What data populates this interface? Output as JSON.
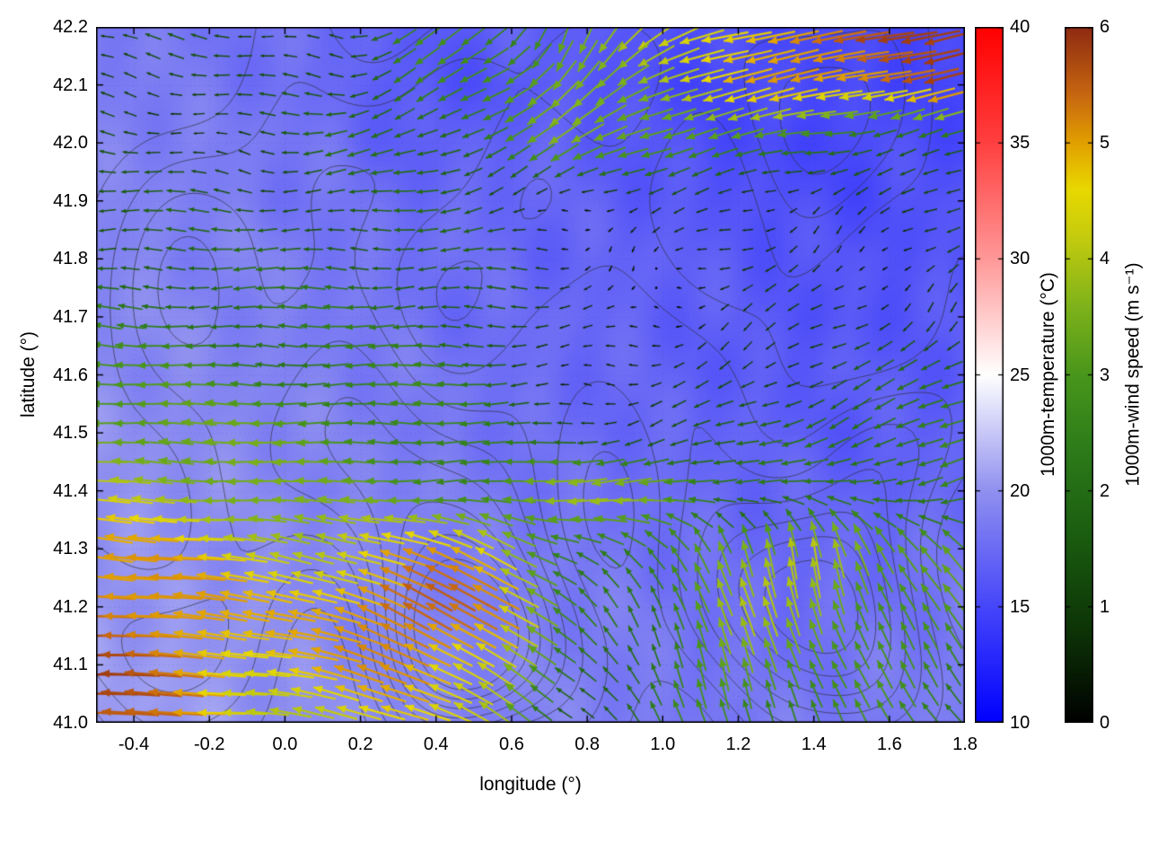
{
  "chart_data": {
    "type": "heatmap",
    "subtype": "temperature-heatmap with terrain contours and wind vector field",
    "title": "",
    "xlabel": "longitude (°)",
    "ylabel": "latitude (°)",
    "xlim": [
      -0.5,
      1.8
    ],
    "ylim": [
      41.0,
      42.2
    ],
    "xticks": [
      -0.4,
      -0.2,
      0.0,
      0.2,
      0.4,
      0.6,
      0.8,
      1.0,
      1.2,
      1.4,
      1.6,
      1.8
    ],
    "yticks": [
      41.0,
      41.1,
      41.2,
      41.3,
      41.4,
      41.5,
      41.6,
      41.7,
      41.8,
      41.9,
      42.0,
      42.1,
      42.2
    ],
    "grid_dotted": true,
    "temperature": {
      "label": "1000m-temperature (°C)",
      "range": [
        10,
        40
      ],
      "ticks": [
        10,
        15,
        20,
        25,
        30,
        35,
        40
      ],
      "colormap": [
        [
          10,
          "#0000ff"
        ],
        [
          15,
          "#4646fa"
        ],
        [
          20,
          "#9090f0"
        ],
        [
          25,
          "#ffffff"
        ],
        [
          30,
          "#ff9898"
        ],
        [
          35,
          "#ff4040"
        ],
        [
          40,
          "#ff0000"
        ]
      ],
      "grid": {
        "nx": 12,
        "ny": 13,
        "values": [
          [
            18.5,
            18.5,
            18.0,
            17.5,
            16.5,
            16.5,
            17.0,
            16.0,
            15.5,
            15.5,
            15.0,
            15.0
          ],
          [
            19.0,
            18.5,
            18.0,
            17.5,
            16.0,
            16.0,
            16.5,
            15.5,
            15.0,
            15.5,
            15.0,
            15.0
          ],
          [
            19.0,
            19.0,
            18.5,
            18.0,
            16.5,
            17.0,
            17.0,
            16.0,
            15.5,
            15.0,
            15.5,
            15.5
          ],
          [
            19.0,
            19.0,
            18.5,
            18.0,
            17.5,
            17.5,
            17.0,
            16.5,
            16.0,
            15.5,
            15.5,
            16.0
          ],
          [
            19.5,
            19.0,
            19.0,
            18.5,
            18.0,
            17.5,
            17.0,
            17.0,
            16.5,
            16.0,
            16.0,
            16.0
          ],
          [
            19.5,
            19.5,
            19.0,
            18.5,
            18.0,
            17.5,
            17.5,
            17.0,
            16.5,
            16.0,
            16.0,
            16.5
          ],
          [
            19.5,
            19.5,
            19.0,
            19.0,
            18.5,
            18.0,
            17.5,
            17.0,
            16.5,
            16.5,
            16.5,
            16.5
          ],
          [
            20.0,
            19.5,
            19.5,
            19.0,
            18.5,
            18.0,
            17.5,
            17.5,
            17.0,
            16.5,
            16.5,
            17.0
          ],
          [
            20.0,
            20.0,
            19.5,
            19.0,
            19.0,
            18.5,
            18.0,
            17.5,
            17.5,
            17.0,
            17.0,
            17.5
          ],
          [
            20.0,
            20.0,
            19.5,
            19.5,
            19.0,
            18.5,
            18.5,
            18.0,
            17.5,
            17.5,
            17.5,
            18.0
          ],
          [
            20.5,
            20.0,
            20.0,
            19.5,
            19.0,
            19.0,
            18.5,
            18.5,
            18.0,
            17.5,
            18.0,
            18.5
          ],
          [
            20.5,
            20.5,
            20.0,
            19.5,
            19.5,
            19.0,
            19.0,
            18.5,
            18.0,
            18.0,
            18.5,
            18.5
          ],
          [
            20.5,
            20.5,
            20.0,
            20.0,
            19.5,
            19.0,
            19.0,
            18.5,
            18.5,
            18.5,
            18.5,
            19.0
          ]
        ]
      }
    },
    "wind": {
      "label": "1000m-wind speed (m s⁻¹)",
      "range": [
        0,
        6
      ],
      "ticks": [
        0,
        1,
        2,
        3,
        4,
        5,
        6
      ],
      "colormap": [
        [
          0,
          "#000000"
        ],
        [
          0.8,
          "#0d3407"
        ],
        [
          1.6,
          "#1a5c10"
        ],
        [
          2.4,
          "#2e7d1a"
        ],
        [
          3.0,
          "#49961c"
        ],
        [
          3.6,
          "#7fb31a"
        ],
        [
          4.2,
          "#c6cc0e"
        ],
        [
          4.6,
          "#e8d800"
        ],
        [
          5.0,
          "#e2a000"
        ],
        [
          5.4,
          "#c86810"
        ],
        [
          6,
          "#8f2a12"
        ]
      ],
      "arrow_cols": 38,
      "arrow_rows": 36,
      "grid": {
        "nx": 12,
        "ny": 13,
        "u": [
          [
            -1.2,
            -1.2,
            -1.0,
            -1.3,
            -2.0,
            -2.0,
            -1.0,
            -3.0,
            -4.5,
            -5.3,
            -5.6,
            -5.4
          ],
          [
            -1.3,
            -1.2,
            -1.1,
            -1.4,
            -2.2,
            -2.3,
            -2.5,
            -3.5,
            -4.2,
            -5.0,
            -5.2,
            -5.4
          ],
          [
            -1.0,
            -1.0,
            -1.1,
            -1.8,
            -1.9,
            -2.2,
            -2.8,
            -3.2,
            -3.0,
            -2.2,
            -1.5,
            -2.0
          ],
          [
            -1.5,
            -1.5,
            -1.4,
            -1.5,
            -1.8,
            -1.2,
            -0.6,
            -0.5,
            -0.8,
            -0.8,
            -0.6,
            -1.0
          ],
          [
            -1.8,
            -1.8,
            -1.8,
            -1.8,
            -1.8,
            -1.5,
            -0.4,
            -0.3,
            -0.6,
            -0.5,
            -0.5,
            -0.8
          ],
          [
            -2.2,
            -2.2,
            -2.2,
            -2.2,
            -2.0,
            -1.8,
            -0.5,
            -0.3,
            -0.8,
            -0.7,
            -0.6,
            -0.7
          ],
          [
            -3.0,
            -2.8,
            -2.5,
            -2.5,
            -2.5,
            -2.0,
            -0.6,
            -0.4,
            -1.0,
            -1.2,
            -1.5,
            -1.8
          ],
          [
            -3.5,
            -3.4,
            -3.2,
            -3.0,
            -2.8,
            -2.2,
            -1.5,
            -1.2,
            -1.5,
            -2.0,
            -2.2,
            -2.5
          ],
          [
            -4.0,
            -3.8,
            -3.6,
            -3.2,
            -3.0,
            -2.8,
            -3.8,
            -4.0,
            -2.5,
            -2.0,
            -2.2,
            -2.8
          ],
          [
            -5.0,
            -4.8,
            -4.2,
            -4.0,
            -4.5,
            -4.0,
            -2.5,
            -1.5,
            -1.0,
            -0.8,
            -1.5,
            -2.0
          ],
          [
            -5.5,
            -5.2,
            -4.5,
            -4.8,
            -5.0,
            -4.5,
            -2.0,
            -1.0,
            -1.2,
            -1.0,
            -1.5,
            -1.8
          ],
          [
            -5.8,
            -5.4,
            -4.6,
            -4.5,
            -4.8,
            -4.0,
            -1.5,
            -0.8,
            -1.0,
            -1.0,
            -1.3,
            -1.6
          ],
          [
            -5.5,
            -5.0,
            -4.3,
            -4.0,
            -4.2,
            -3.5,
            -1.2,
            -0.8,
            -0.9,
            -1.0,
            -1.2,
            -1.5
          ]
        ],
        "v": [
          [
            0.3,
            0.3,
            0.2,
            0.2,
            -1.5,
            -1.5,
            -3.5,
            -2.5,
            -1.0,
            -0.8,
            -1.0,
            -1.5
          ],
          [
            0.2,
            0.2,
            0.2,
            0.1,
            -1.2,
            -1.5,
            -2.5,
            -1.5,
            -1.2,
            -1.0,
            -1.0,
            -1.2
          ],
          [
            0.2,
            0.2,
            0.1,
            -0.4,
            -0.6,
            -1.0,
            -1.8,
            -1.0,
            -0.6,
            -0.4,
            -0.3,
            -0.5
          ],
          [
            0.1,
            0.1,
            0.1,
            0.0,
            -0.3,
            -0.3,
            -0.2,
            -0.2,
            -0.3,
            -0.4,
            -0.4,
            -0.6
          ],
          [
            0.0,
            0.0,
            0.0,
            0.0,
            0.0,
            0.0,
            -0.1,
            -0.1,
            -0.3,
            -0.3,
            -0.4,
            -0.5
          ],
          [
            0.2,
            0.1,
            0.0,
            0.0,
            0.0,
            0.0,
            0.0,
            -0.1,
            -0.4,
            -0.5,
            -0.5,
            -0.6
          ],
          [
            0.2,
            0.1,
            0.0,
            0.0,
            0.0,
            0.0,
            0.0,
            -0.2,
            -0.5,
            -0.6,
            -0.8,
            -0.8
          ],
          [
            0.2,
            0.1,
            0.0,
            0.0,
            0.0,
            0.0,
            -0.2,
            -0.3,
            -0.5,
            -0.8,
            -0.9,
            -1.0
          ],
          [
            0.3,
            0.2,
            0.1,
            0.0,
            0.0,
            -0.2,
            -0.3,
            -0.3,
            -0.5,
            0.5,
            -0.6,
            -0.8
          ],
          [
            0.5,
            0.4,
            0.5,
            1.0,
            1.5,
            2.0,
            1.0,
            1.5,
            3.5,
            4.0,
            3.0,
            2.5
          ],
          [
            0.3,
            0.5,
            0.8,
            1.5,
            2.5,
            2.8,
            1.5,
            2.0,
            3.8,
            3.5,
            2.8,
            2.2
          ],
          [
            0.2,
            0.3,
            0.5,
            1.2,
            2.0,
            2.5,
            1.0,
            2.2,
            3.0,
            3.0,
            2.5,
            2.0
          ],
          [
            0.1,
            0.2,
            0.4,
            0.8,
            1.5,
            2.0,
            0.8,
            2.0,
            2.5,
            2.5,
            2.2,
            1.8
          ]
        ]
      }
    },
    "contours": {
      "color": "#2d2d32",
      "levels": [
        110,
        210,
        310,
        410,
        510,
        610,
        710,
        810
      ],
      "lat_scale": 1.5,
      "noise_amp": 45,
      "peaks": [
        [
          0.5,
          41.12,
          900,
          0.16
        ],
        [
          0.42,
          41.32,
          450,
          0.22
        ],
        [
          1.32,
          41.22,
          750,
          0.2
        ],
        [
          1.55,
          41.05,
          300,
          0.18
        ],
        [
          -0.25,
          41.72,
          320,
          0.28
        ],
        [
          0.15,
          41.95,
          300,
          0.22
        ],
        [
          0.75,
          42.12,
          340,
          0.18
        ],
        [
          1.45,
          42.08,
          320,
          0.22
        ],
        [
          0.95,
          41.62,
          240,
          0.26
        ],
        [
          1.62,
          41.48,
          330,
          0.16
        ],
        [
          -0.35,
          41.12,
          320,
          0.18
        ],
        [
          0.3,
          41.55,
          260,
          0.2
        ],
        [
          -0.1,
          41.4,
          250,
          0.22
        ]
      ]
    }
  }
}
